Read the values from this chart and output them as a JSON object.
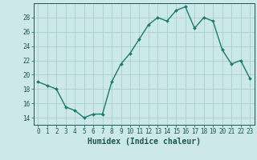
{
  "x": [
    0,
    1,
    2,
    3,
    4,
    5,
    6,
    7,
    8,
    9,
    10,
    11,
    12,
    13,
    14,
    15,
    16,
    17,
    18,
    19,
    20,
    21,
    22,
    23
  ],
  "y": [
    19.0,
    18.5,
    18.0,
    15.5,
    15.0,
    14.0,
    14.5,
    14.5,
    19.0,
    21.5,
    23.0,
    25.0,
    27.0,
    28.0,
    27.5,
    29.0,
    29.5,
    26.5,
    28.0,
    27.5,
    23.5,
    21.5,
    22.0,
    19.5
  ],
  "xlabel": "Humidex (Indice chaleur)",
  "xlim": [
    -0.5,
    23.5
  ],
  "ylim": [
    13.0,
    30.0
  ],
  "yticks": [
    14,
    16,
    18,
    20,
    22,
    24,
    26,
    28
  ],
  "xticks": [
    0,
    1,
    2,
    3,
    4,
    5,
    6,
    7,
    8,
    9,
    10,
    11,
    12,
    13,
    14,
    15,
    16,
    17,
    18,
    19,
    20,
    21,
    22,
    23
  ],
  "xtick_labels": [
    "0",
    "1",
    "2",
    "3",
    "4",
    "5",
    "6",
    "7",
    "8",
    "9",
    "10",
    "11",
    "12",
    "13",
    "14",
    "15",
    "16",
    "17",
    "18",
    "19",
    "20",
    "21",
    "22",
    "23"
  ],
  "line_color": "#1a7a6e",
  "marker": "D",
  "marker_size": 2.0,
  "bg_color": "#cce8e8",
  "grid_color": "#aacece",
  "font_color": "#1a5555",
  "tick_fontsize": 5.5,
  "xlabel_fontsize": 7.0
}
